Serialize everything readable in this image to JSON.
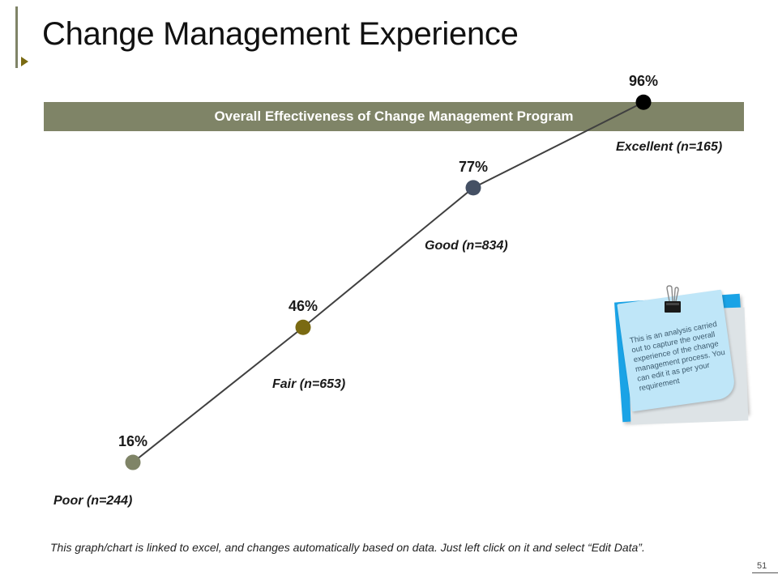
{
  "title": "Change Management Experience",
  "chart_data": {
    "type": "line",
    "title": "Overall Effectiveness of Change Management Program",
    "categories": [
      "Poor (n=244)",
      "Fair (n=653)",
      "Good (n=834)",
      "Excellent (n=165)"
    ],
    "values": [
      16,
      46,
      77,
      96
    ],
    "value_labels": [
      "16%",
      "46%",
      "77%",
      "96%"
    ],
    "marker_colors": [
      "#7f8467",
      "#7a6a12",
      "#445064",
      "#000000"
    ],
    "line_color": "#404040",
    "ylim": [
      0,
      100
    ],
    "xlabel": "",
    "ylabel": "",
    "grid": false
  },
  "sticky_note": {
    "text": "This is an analysis carried out to capture the overall experience of the change management process. You can edit it as per your requirement"
  },
  "footer": {
    "note": "This graph/chart is linked to excel, and changes automatically based on data. Just left click on it and select “Edit Data”.",
    "page_number": "51"
  }
}
